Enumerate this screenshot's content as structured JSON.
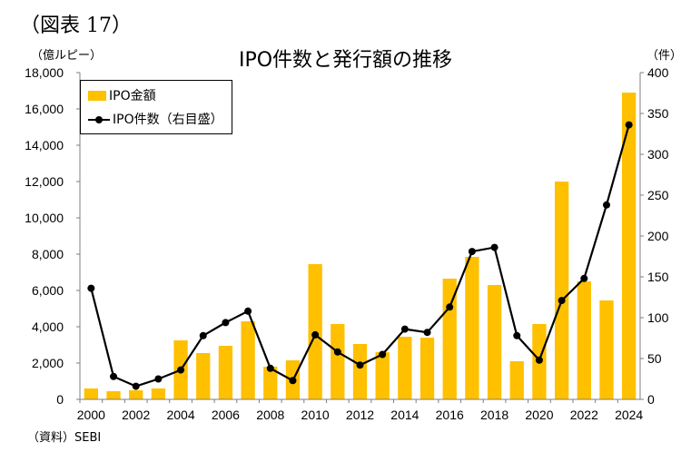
{
  "figure_label": "（図表 17）",
  "source": "（資料）SEBI",
  "colors": {
    "bar": "#FFC000",
    "line": "#000000",
    "axis": "#7f7f7f"
  },
  "chart_data": {
    "type": "bar+line",
    "title": "IPO件数と発行額の推移",
    "left_unit": "（億ルピー）",
    "right_unit": "（件）",
    "legend_position": "top-left",
    "grid": false,
    "x": [
      2000,
      2001,
      2002,
      2003,
      2004,
      2005,
      2006,
      2007,
      2008,
      2009,
      2010,
      2011,
      2012,
      2013,
      2014,
      2015,
      2016,
      2017,
      2018,
      2019,
      2020,
      2021,
      2022,
      2023,
      2024
    ],
    "x_tick_labels": [
      "2000",
      "2002",
      "2004",
      "2006",
      "2008",
      "2010",
      "2012",
      "2014",
      "2016",
      "2018",
      "2020",
      "2022",
      "2024"
    ],
    "y_left_ticks": [
      "0",
      "2,000",
      "4,000",
      "6,000",
      "8,000",
      "10,000",
      "12,000",
      "14,000",
      "16,000",
      "18,000"
    ],
    "y_right_ticks": [
      "0",
      "50",
      "100",
      "150",
      "200",
      "250",
      "300",
      "350",
      "400"
    ],
    "ylim_left": [
      0,
      18000
    ],
    "ylim_right": [
      0,
      400
    ],
    "series": [
      {
        "name": "IPO金額",
        "type": "bar",
        "axis": "left",
        "values": [
          600,
          450,
          500,
          600,
          3250,
          2550,
          2950,
          4300,
          1800,
          2150,
          7450,
          4150,
          3050,
          2600,
          3450,
          3400,
          6650,
          7850,
          6300,
          2100,
          4150,
          12000,
          6500,
          5450,
          16900
        ]
      },
      {
        "name": "IPO件数（右目盛）",
        "type": "line",
        "axis": "right",
        "values": [
          136,
          28,
          16,
          25,
          36,
          78,
          94,
          108,
          38,
          23,
          79,
          58,
          42,
          55,
          86,
          82,
          113,
          181,
          186,
          78,
          48,
          121,
          148,
          238,
          336
        ]
      }
    ]
  }
}
